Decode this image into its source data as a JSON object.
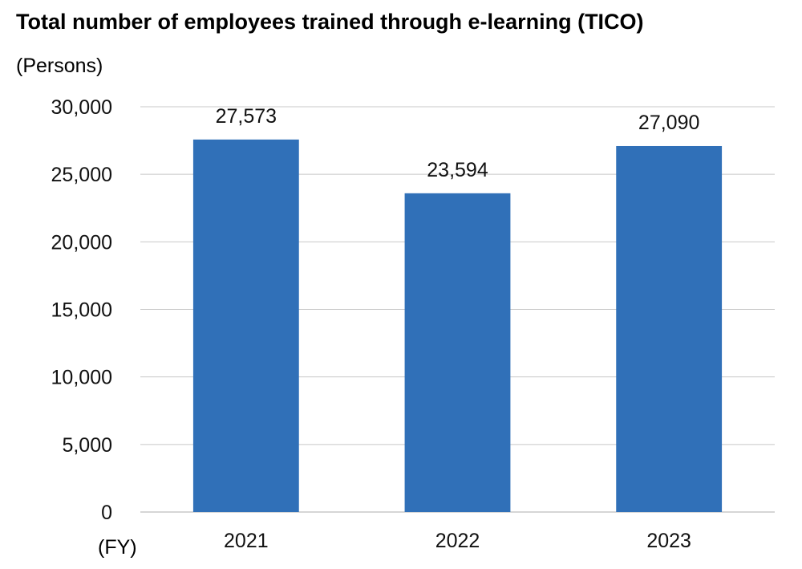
{
  "chart_data": {
    "type": "bar",
    "title": "Total number of employees trained through e-learning (TICO)",
    "ylabel": "(Persons)",
    "xlabel": "(FY)",
    "categories": [
      "2021",
      "2022",
      "2023"
    ],
    "values": [
      27573,
      23594,
      27090
    ],
    "value_labels": [
      "27,573",
      "23,594",
      "27,090"
    ],
    "ylim": [
      0,
      30000
    ],
    "y_ticks": [
      0,
      5000,
      10000,
      15000,
      20000,
      25000,
      30000
    ],
    "y_tick_labels": [
      "0",
      "5,000",
      "10,000",
      "15,000",
      "20,000",
      "25,000",
      "30,000"
    ],
    "grid": true,
    "legend": "none",
    "bar_color": "#3070B8",
    "grid_color": "#C8C8C8"
  }
}
